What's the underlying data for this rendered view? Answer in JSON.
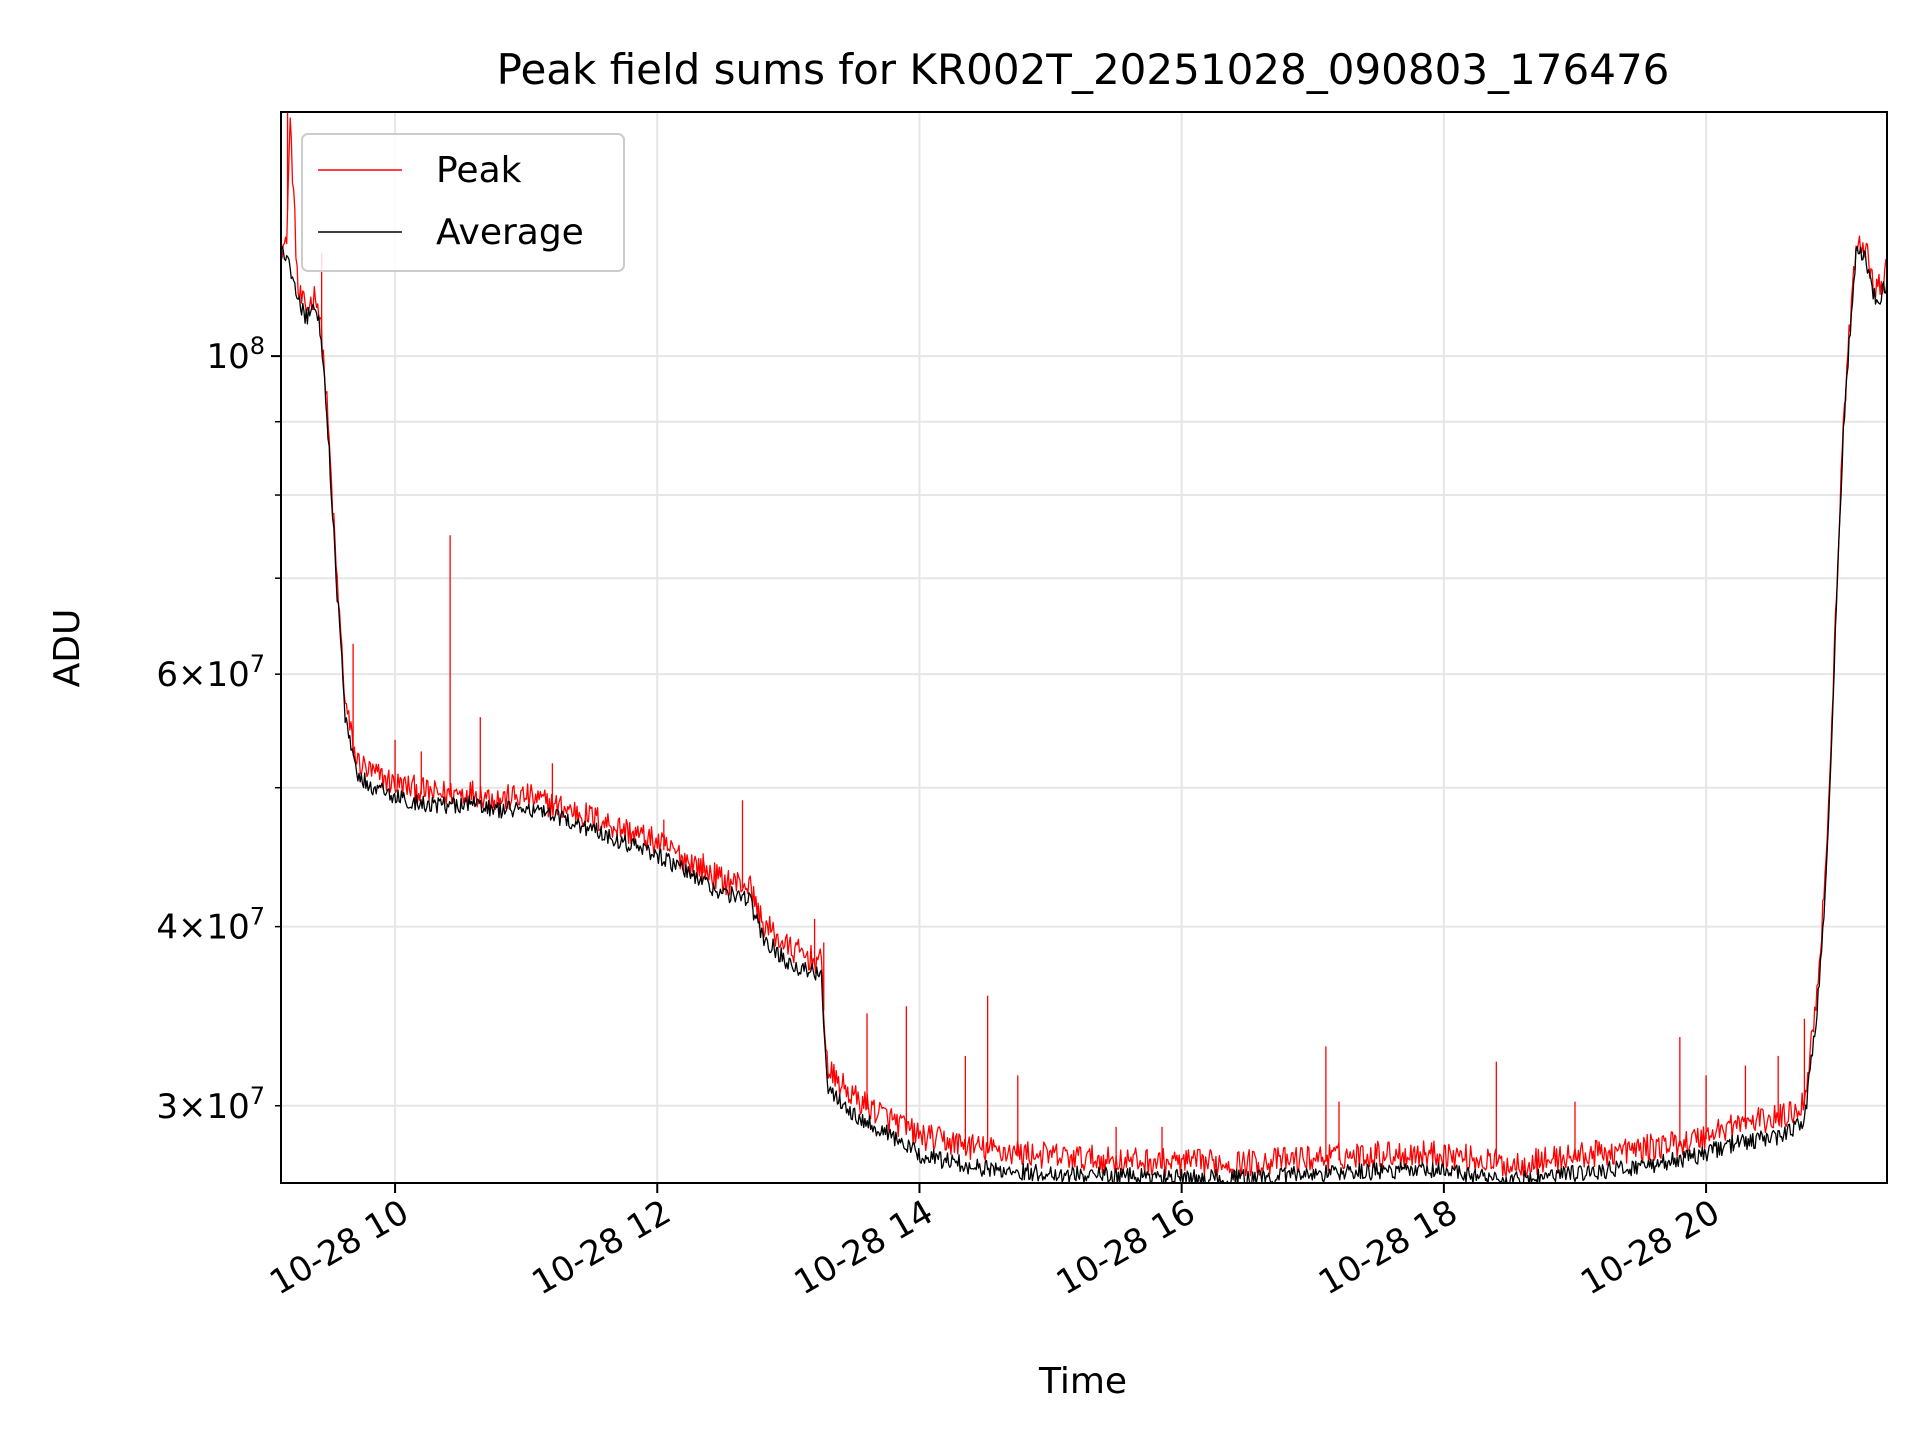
{
  "chart_data": {
    "type": "line",
    "title": "Peak field sums for KR002T_20251028_090803_176476",
    "xlabel": "Time",
    "ylabel": "ADU",
    "xscale": "time",
    "yscale": "log",
    "x_unit": "hours since 10-28 00:00",
    "xlim": [
      9.13,
      21.38
    ],
    "ylim": [
      26500000,
      148000000
    ],
    "grid": true,
    "legend_position": "upper-left",
    "x_ticks": [
      {
        "value": 10,
        "label": "10-28 10"
      },
      {
        "value": 12,
        "label": "10-28 12"
      },
      {
        "value": 14,
        "label": "10-28 14"
      },
      {
        "value": 16,
        "label": "10-28 16"
      },
      {
        "value": 18,
        "label": "10-28 18"
      },
      {
        "value": 20,
        "label": "10-28 20"
      }
    ],
    "y_major_ticks": [
      {
        "value": 100000000,
        "mantissa": "",
        "exponent": "8"
      }
    ],
    "y_minor_ticks": [
      {
        "value": 30000000,
        "mantissa": "3",
        "exponent": "7"
      },
      {
        "value": 40000000,
        "mantissa": "4",
        "exponent": "7"
      },
      {
        "value": 50000000,
        "mantissa": "",
        "exponent": ""
      },
      {
        "value": 60000000,
        "mantissa": "6",
        "exponent": "7"
      },
      {
        "value": 70000000,
        "mantissa": "",
        "exponent": ""
      },
      {
        "value": 80000000,
        "mantissa": "",
        "exponent": ""
      },
      {
        "value": 90000000,
        "mantissa": "",
        "exponent": ""
      }
    ],
    "tick_base": "10",
    "times_symbol": "×",
    "series": [
      {
        "name": "Peak",
        "color": "#ff0000",
        "noise_amplitude": 0.022,
        "x": [
          9.13,
          9.17,
          9.2,
          9.26,
          9.32,
          9.4,
          9.44,
          9.48,
          9.55,
          9.62,
          9.7,
          9.8,
          10.0,
          10.3,
          10.6,
          10.8,
          11.0,
          11.5,
          12.0,
          12.5,
          12.7,
          12.8,
          13.0,
          13.25,
          13.3,
          13.5,
          13.8,
          14.0,
          14.5,
          15.0,
          15.5,
          16.0,
          16.5,
          17.0,
          17.5,
          18.0,
          18.5,
          19.0,
          19.5,
          19.9,
          20.2,
          20.6,
          20.75,
          20.85,
          20.9,
          20.95,
          21.0,
          21.05,
          21.1,
          21.15,
          21.22,
          21.3,
          21.38
        ],
        "y": [
          119000000,
          118000000,
          145000000,
          110000000,
          107000000,
          110000000,
          103000000,
          92000000,
          71000000,
          57000000,
          52000000,
          51000000,
          50000000,
          49200000,
          49300000,
          48800000,
          49000000,
          47400000,
          45500000,
          42800000,
          42500000,
          40000000,
          38400000,
          37500000,
          31500000,
          30200000,
          29100000,
          28400000,
          27800000,
          27500000,
          27300000,
          27200000,
          27200000,
          27400000,
          27600000,
          27600000,
          27100000,
          27500000,
          27800000,
          28200000,
          28900000,
          29300000,
          30000000,
          36000000,
          42000000,
          52000000,
          70000000,
          90000000,
          105000000,
          120000000,
          118000000,
          110000000,
          114000000
        ]
      },
      {
        "name": "Average",
        "color": "#000000",
        "noise_amplitude": 0.014,
        "x": [
          9.13,
          9.17,
          9.26,
          9.32,
          9.4,
          9.44,
          9.48,
          9.55,
          9.62,
          9.7,
          9.8,
          10.0,
          10.3,
          10.6,
          10.8,
          11.0,
          11.5,
          12.0,
          12.5,
          12.7,
          12.8,
          13.0,
          13.25,
          13.3,
          13.5,
          13.8,
          14.0,
          14.5,
          15.0,
          15.5,
          16.0,
          16.5,
          17.0,
          17.5,
          18.0,
          18.5,
          19.0,
          19.5,
          19.9,
          20.2,
          20.6,
          20.75,
          20.85,
          20.9,
          20.95,
          21.0,
          21.05,
          21.1,
          21.15,
          21.22,
          21.3,
          21.38
        ],
        "y": [
          118000000,
          117000000,
          109000000,
          106000000,
          108000000,
          102000000,
          91000000,
          70000000,
          56000000,
          51000000,
          50000000,
          49000000,
          48400000,
          48500000,
          48000000,
          48200000,
          46600000,
          44700000,
          42000000,
          41700000,
          39200000,
          37600000,
          36800000,
          30800000,
          29500000,
          28400000,
          27600000,
          27000000,
          26800000,
          26700000,
          26600000,
          26600000,
          26800000,
          26900000,
          26900000,
          26500000,
          26800000,
          27100000,
          27500000,
          28100000,
          28500000,
          29200000,
          35000000,
          41000000,
          51000000,
          69000000,
          89000000,
          104000000,
          119000000,
          116000000,
          108000000,
          112000000
        ]
      }
    ],
    "spikes": [
      {
        "x": 9.18,
        "y": 148000000
      },
      {
        "x": 9.44,
        "y": 118000000
      },
      {
        "x": 9.68,
        "y": 63000000
      },
      {
        "x": 10.0,
        "y": 54000000
      },
      {
        "x": 10.2,
        "y": 53000000
      },
      {
        "x": 10.42,
        "y": 75000000
      },
      {
        "x": 10.65,
        "y": 56000000
      },
      {
        "x": 11.2,
        "y": 52000000
      },
      {
        "x": 12.05,
        "y": 47500000
      },
      {
        "x": 12.35,
        "y": 45000000
      },
      {
        "x": 12.65,
        "y": 49000000
      },
      {
        "x": 13.2,
        "y": 40500000
      },
      {
        "x": 13.27,
        "y": 39000000
      },
      {
        "x": 13.6,
        "y": 34800000
      },
      {
        "x": 13.9,
        "y": 35200000
      },
      {
        "x": 14.35,
        "y": 32500000
      },
      {
        "x": 14.52,
        "y": 35800000
      },
      {
        "x": 14.75,
        "y": 31500000
      },
      {
        "x": 15.5,
        "y": 29000000
      },
      {
        "x": 15.85,
        "y": 29000000
      },
      {
        "x": 17.1,
        "y": 33000000
      },
      {
        "x": 17.2,
        "y": 30200000
      },
      {
        "x": 18.4,
        "y": 32200000
      },
      {
        "x": 19.0,
        "y": 30200000
      },
      {
        "x": 19.8,
        "y": 33500000
      },
      {
        "x": 20.0,
        "y": 31500000
      },
      {
        "x": 20.3,
        "y": 32000000
      },
      {
        "x": 20.55,
        "y": 32500000
      },
      {
        "x": 20.75,
        "y": 34500000
      }
    ]
  }
}
